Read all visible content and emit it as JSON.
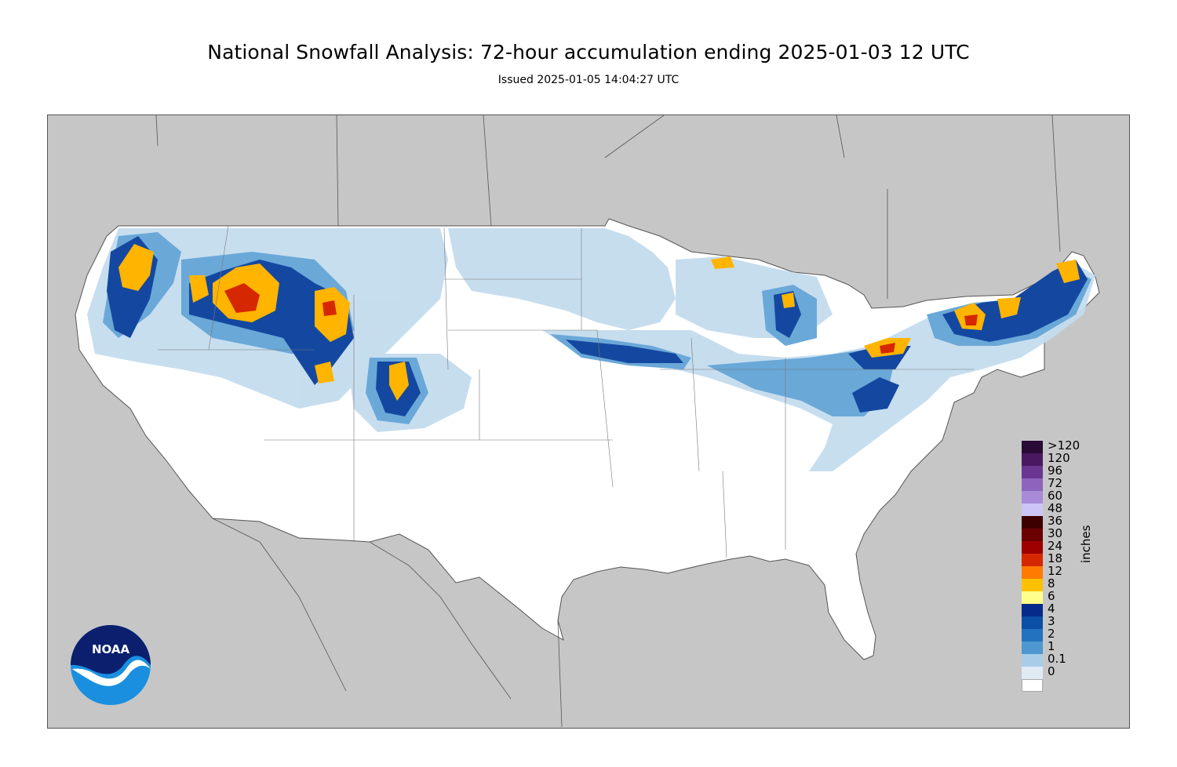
{
  "title": "National Snowfall Analysis: 72-hour accumulation ending 2025-01-03 12 UTC",
  "subtitle": "Issued 2025-01-05 14:04:27 UTC",
  "logo_text": "NOAA",
  "legend": {
    "units": "inches",
    "entries": [
      {
        "label": ">120",
        "color": "#2a0a36"
      },
      {
        "label": "120",
        "color": "#4a1860"
      },
      {
        "label": "96",
        "color": "#6a3590"
      },
      {
        "label": "72",
        "color": "#8d63bd"
      },
      {
        "label": "60",
        "color": "#a98ad9"
      },
      {
        "label": "48",
        "color": "#cdc5f5"
      },
      {
        "label": "36",
        "color": "#3d0000"
      },
      {
        "label": "30",
        "color": "#6b0000"
      },
      {
        "label": "24",
        "color": "#9e0000"
      },
      {
        "label": "18",
        "color": "#d62800"
      },
      {
        "label": "12",
        "color": "#ff7a00"
      },
      {
        "label": "8",
        "color": "#ffc000"
      },
      {
        "label": "6",
        "color": "#ffff8c"
      },
      {
        "label": "4",
        "color": "#062a8a"
      },
      {
        "label": "3",
        "color": "#0b4fa6"
      },
      {
        "label": "2",
        "color": "#2272bf"
      },
      {
        "label": "1",
        "color": "#4f97d0"
      },
      {
        "label": "0.1",
        "color": "#a9cde8"
      },
      {
        "label": "0",
        "color": "#dfeaf5"
      },
      {
        "label": "",
        "color": "#ffffff"
      }
    ]
  },
  "colors": {
    "background_land": "#c6c6c6",
    "us_land": "#ffffff",
    "border": "#666666"
  }
}
